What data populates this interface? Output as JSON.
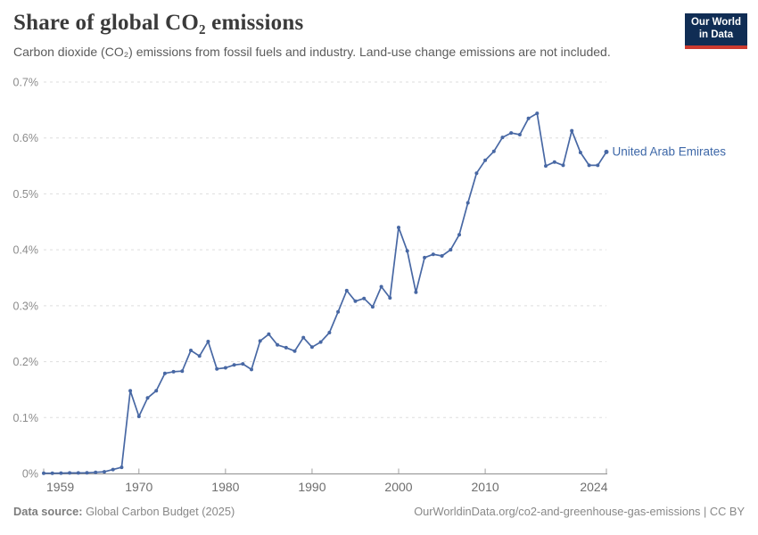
{
  "header": {
    "title": "Share of global CO₂ emissions",
    "subtitle": "Carbon dioxide (CO₂) emissions from fossil fuels and industry. Land-use change emissions are not included."
  },
  "logo": {
    "line1": "Our World",
    "line2": "in Data"
  },
  "chart_data": {
    "type": "line",
    "title": "Share of global CO₂ emissions",
    "xlabel": "",
    "ylabel": "",
    "unit": "%",
    "xlim": [
      1959,
      2024
    ],
    "ylim": [
      0,
      0.7
    ],
    "grid": "horizontal-dashed",
    "legend_position": "end-of-line-label",
    "xticks": [
      1959,
      1970,
      1980,
      1990,
      2000,
      2010,
      2024
    ],
    "yticks": [
      {
        "value": 0.0,
        "label": "0%"
      },
      {
        "value": 0.1,
        "label": "0.1%"
      },
      {
        "value": 0.2,
        "label": "0.2%"
      },
      {
        "value": 0.3,
        "label": "0.3%"
      },
      {
        "value": 0.4,
        "label": "0.4%"
      },
      {
        "value": 0.5,
        "label": "0.5%"
      },
      {
        "value": 0.6,
        "label": "0.6%"
      },
      {
        "value": 0.7,
        "label": "0.7%"
      }
    ],
    "series": [
      {
        "name": "United Arab Emirates",
        "color": "#4868a4",
        "x": [
          1959,
          1960,
          1961,
          1962,
          1963,
          1964,
          1965,
          1966,
          1967,
          1968,
          1969,
          1970,
          1971,
          1972,
          1973,
          1974,
          1975,
          1976,
          1977,
          1978,
          1979,
          1980,
          1981,
          1982,
          1983,
          1984,
          1985,
          1986,
          1987,
          1988,
          1989,
          1990,
          1991,
          1992,
          1993,
          1994,
          1995,
          1996,
          1997,
          1998,
          1999,
          2000,
          2001,
          2002,
          2003,
          2004,
          2005,
          2006,
          2007,
          2008,
          2009,
          2010,
          2011,
          2012,
          2013,
          2014,
          2015,
          2016,
          2017,
          2018,
          2019,
          2020,
          2021,
          2022,
          2023,
          2024
        ],
        "values": [
          0.0005,
          0.0005,
          0.0007,
          0.001,
          0.001,
          0.0013,
          0.002,
          0.003,
          0.007,
          0.011,
          0.148,
          0.102,
          0.135,
          0.148,
          0.179,
          0.182,
          0.183,
          0.22,
          0.21,
          0.236,
          0.187,
          0.189,
          0.194,
          0.196,
          0.186,
          0.237,
          0.249,
          0.23,
          0.225,
          0.219,
          0.243,
          0.226,
          0.235,
          0.252,
          0.289,
          0.327,
          0.308,
          0.313,
          0.298,
          0.334,
          0.314,
          0.44,
          0.398,
          0.324,
          0.386,
          0.392,
          0.389,
          0.4,
          0.427,
          0.484,
          0.537,
          0.56,
          0.576,
          0.601,
          0.609,
          0.606,
          0.635,
          0.644,
          0.55,
          0.557,
          0.551,
          0.613,
          0.574,
          0.551,
          0.551,
          0.575
        ]
      }
    ]
  },
  "footer": {
    "source_prefix": "Data source:",
    "source": "Global Carbon Budget (2025)",
    "link": "OurWorldinData.org/co2-and-greenhouse-gas-emissions | CC BY"
  },
  "colors": {
    "line": "#4868a4",
    "series_label": "#3e68a8",
    "grid": "#dedede",
    "axis": "#8f8f8f",
    "tick": "#a0a0a0",
    "y_label": "#8c8c8c",
    "x_label": "#6e6e6e",
    "logo_bg": "#102d54",
    "logo_red": "#cc3a2f"
  }
}
